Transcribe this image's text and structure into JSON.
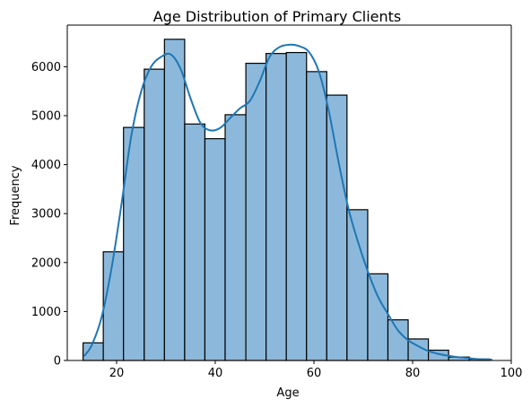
{
  "chart_data": {
    "type": "bar",
    "title": "Age Distribution of Primary Clients",
    "xlabel": "Age",
    "ylabel": "Frequency",
    "xlim": [
      10,
      100
    ],
    "ylim": [
      0,
      6850
    ],
    "x_ticks": [
      20,
      40,
      60,
      80,
      100
    ],
    "y_ticks": [
      0,
      1000,
      2000,
      3000,
      4000,
      5000,
      6000
    ],
    "bin_edges": [
      13.2,
      17.3,
      21.4,
      25.6,
      29.7,
      33.8,
      37.9,
      42.0,
      46.2,
      50.3,
      54.4,
      58.5,
      62.6,
      66.7,
      70.9,
      75.0,
      79.1,
      83.2,
      87.3,
      91.5,
      95.6
    ],
    "values": [
      360,
      2220,
      4760,
      5950,
      6560,
      4830,
      4530,
      5020,
      6070,
      6270,
      6290,
      5900,
      5420,
      3080,
      1770,
      830,
      440,
      210,
      70,
      30
    ],
    "grid": false,
    "legend": "none",
    "kde": {
      "x": [
        13.5,
        15,
        17,
        19,
        21,
        23,
        25,
        27,
        29,
        31,
        33,
        35,
        37,
        39,
        41,
        43,
        45,
        47,
        49,
        51,
        53,
        55,
        57,
        59,
        61,
        63,
        65,
        67,
        69,
        71,
        73,
        75,
        77,
        79,
        81,
        83,
        85,
        87,
        89,
        91,
        93,
        95,
        96
      ],
      "y": [
        100,
        320,
        900,
        1900,
        3200,
        4600,
        5500,
        6000,
        6200,
        6250,
        5950,
        5350,
        4850,
        4700,
        4750,
        4950,
        5150,
        5300,
        5700,
        6200,
        6400,
        6450,
        6420,
        6300,
        5900,
        5100,
        4050,
        3100,
        2400,
        1800,
        1300,
        950,
        620,
        420,
        300,
        200,
        140,
        100,
        70,
        50,
        30,
        20,
        15
      ]
    },
    "colors": {
      "bar_fill": "#8cb9db",
      "bar_edge": "#000000",
      "kde_line": "#1f77b4"
    }
  }
}
